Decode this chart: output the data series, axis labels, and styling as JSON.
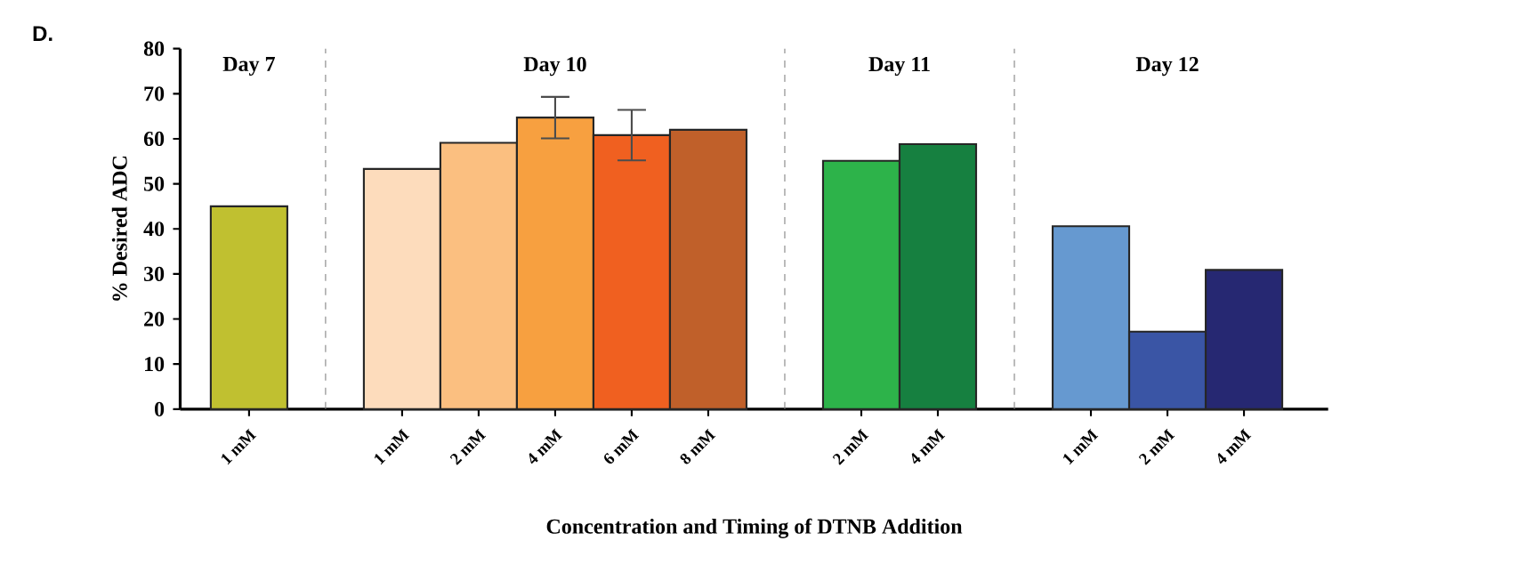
{
  "chart_data": {
    "type": "bar",
    "title": "D.",
    "xlabel": "Concentration  and Timing  of DTNB Addition",
    "ylabel": "% Desired ADC",
    "categories": [
      "1 mM",
      null,
      "1 mM",
      "2 mM",
      "4 mM",
      "6 mM",
      "8 mM",
      null,
      "2 mM",
      "4 mM",
      null,
      "1 mM",
      "2 mM",
      "4 mM"
    ],
    "values": [
      45.0,
      null,
      53.3,
      59.1,
      64.7,
      60.8,
      62.0,
      null,
      55.1,
      58.8,
      null,
      40.6,
      17.2,
      30.9
    ],
    "errors": [
      null,
      null,
      null,
      null,
      4.6,
      5.6,
      null,
      null,
      null,
      null,
      null,
      null,
      null,
      null
    ],
    "colors": [
      "#c0c030",
      "#ffffff",
      "#fddcbc",
      "#fbbf80",
      "#f7a040",
      "#f06020",
      "#c0602a",
      "#ffffff",
      "#2db34a",
      "#168040",
      "#ffffff",
      "#6699d0",
      "#3a55a5",
      "#262872"
    ],
    "ylim": [
      0,
      80
    ],
    "yticks": [
      0,
      10,
      20,
      30,
      40,
      50,
      60,
      70,
      80
    ],
    "annotations": [
      "Day 7",
      "Day 10",
      "Day 11",
      "Day 12"
    ],
    "grid": "x"
  }
}
